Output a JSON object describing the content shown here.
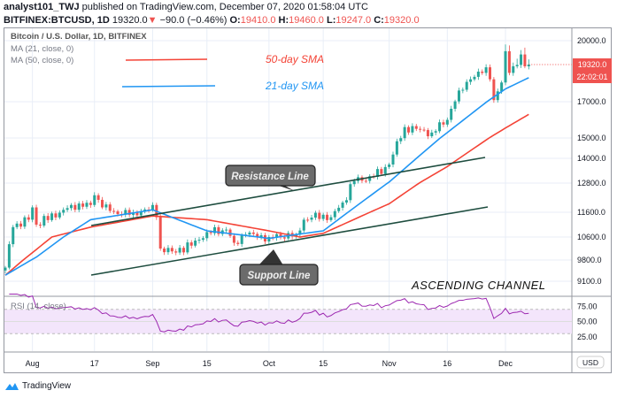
{
  "header": {
    "author": "analyst101_TWJ",
    "published": "published on TradingView.com, December 07, 2020 01:58:04 UTC",
    "symbol": "BITFINEX:BTCUSD, 1D",
    "last": "19320.0",
    "change": "−90.0 (−0.46%)",
    "open_label": "O:",
    "open": "19410.0",
    "high_label": "H:",
    "high": "19460.0",
    "low_label": "L:",
    "low": "19247.0",
    "close_label": "C:",
    "close": "19320.0"
  },
  "legend": {
    "title": "Bitcoin / U.S. Dollar, 1D, BITFINEX",
    "ma21": "MA (21, close, 0)",
    "ma50": "MA (50, close, 0)",
    "rsi": "RSI (14, close)"
  },
  "annotations": {
    "sma50": "50-day SMA",
    "sma21": "21-day SMA",
    "resistance": "Resistance Line",
    "support": "Support Line",
    "channel": "ASCENDING CHANNEL"
  },
  "price_axis": {
    "currency": "USD",
    "ticks": [
      "20000.0",
      "17000.0",
      "15000.0",
      "14000.0",
      "12800.0",
      "11600.0",
      "10600.0",
      "9800.0",
      "9100.0"
    ],
    "tick_values": [
      20000,
      17000,
      15000,
      14000,
      12800,
      11600,
      10600,
      9800,
      9100
    ],
    "last_price": "19320.0",
    "countdown": "22:02:01"
  },
  "rsi_axis": {
    "ticks": [
      "75.00",
      "50.00",
      "25.00"
    ]
  },
  "time_axis": {
    "labels": [
      "Aug",
      "17",
      "Sep",
      "15",
      "Oct",
      "15",
      "Nov",
      "16",
      "Dec"
    ],
    "label_days": [
      7,
      23,
      38,
      52,
      68,
      82,
      99,
      114,
      129
    ]
  },
  "colors": {
    "up": "#26a69a",
    "down": "#ef5350",
    "sma21": "#2196f3",
    "sma50": "#f44336",
    "rsi": "#9c27b0",
    "channel": "#1e4d3f"
  },
  "chart_data": {
    "type": "candlestick",
    "first_day": "Jul 25",
    "days": 136,
    "close_keypoints": [
      [
        0,
        9550
      ],
      [
        2,
        11000
      ],
      [
        6,
        11300
      ],
      [
        7,
        11800
      ],
      [
        8,
        11100
      ],
      [
        15,
        11700
      ],
      [
        17,
        11900
      ],
      [
        22,
        11900
      ],
      [
        23,
        12300
      ],
      [
        25,
        11800
      ],
      [
        30,
        11500
      ],
      [
        33,
        11600
      ],
      [
        37,
        11700
      ],
      [
        38,
        11900
      ],
      [
        39,
        11400
      ],
      [
        40,
        10200
      ],
      [
        43,
        10100
      ],
      [
        48,
        10300
      ],
      [
        52,
        10800
      ],
      [
        57,
        10900
      ],
      [
        59,
        10400
      ],
      [
        62,
        10700
      ],
      [
        68,
        10600
      ],
      [
        75,
        10700
      ],
      [
        77,
        11300
      ],
      [
        82,
        11500
      ],
      [
        84,
        11400
      ],
      [
        87,
        12000
      ],
      [
        90,
        12900
      ],
      [
        95,
        13100
      ],
      [
        99,
        13700
      ],
      [
        103,
        15600
      ],
      [
        110,
        15300
      ],
      [
        114,
        16000
      ],
      [
        117,
        17700
      ],
      [
        120,
        18400
      ],
      [
        123,
        18800
      ],
      [
        124,
        19150
      ],
      [
        125,
        18400
      ],
      [
        126,
        17100
      ],
      [
        128,
        18200
      ],
      [
        129,
        19700
      ],
      [
        130,
        18800
      ],
      [
        132,
        19300
      ],
      [
        135,
        19320
      ]
    ],
    "sma21_keypoints": [
      [
        0,
        9300
      ],
      [
        8,
        9900
      ],
      [
        22,
        11300
      ],
      [
        38,
        11700
      ],
      [
        52,
        10850
      ],
      [
        68,
        10550
      ],
      [
        82,
        10850
      ],
      [
        99,
        12850
      ],
      [
        114,
        15300
      ],
      [
        129,
        17800
      ],
      [
        135,
        18500
      ]
    ],
    "sma50_keypoints": [
      [
        0,
        9300
      ],
      [
        12,
        10600
      ],
      [
        22,
        11000
      ],
      [
        38,
        11450
      ],
      [
        52,
        11300
      ],
      [
        68,
        10850
      ],
      [
        76,
        10600
      ],
      [
        82,
        10750
      ],
      [
        99,
        11950
      ],
      [
        114,
        13600
      ],
      [
        129,
        15550
      ],
      [
        135,
        16300
      ]
    ]
  },
  "footer": {
    "brand": "TradingView"
  }
}
